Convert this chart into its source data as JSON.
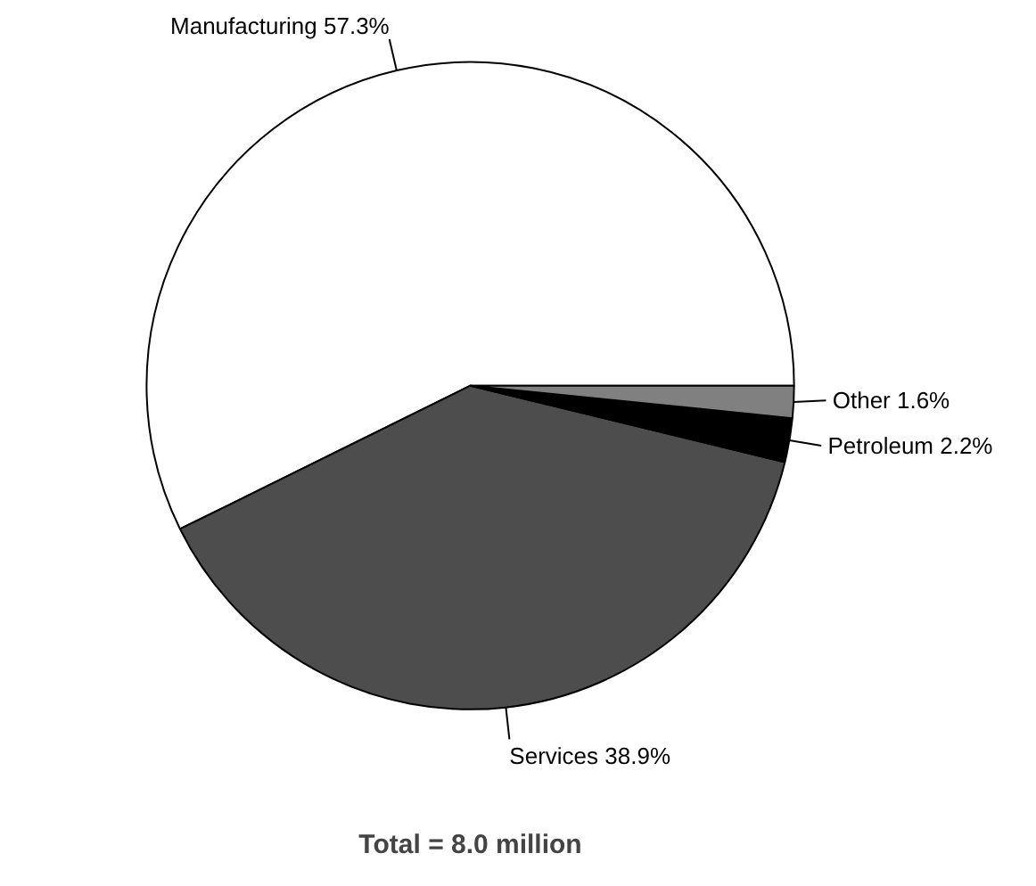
{
  "chart_data": {
    "type": "pie",
    "categories": [
      "Manufacturing",
      "Services",
      "Petroleum",
      "Other"
    ],
    "values": [
      57.3,
      38.9,
      2.2,
      1.6
    ],
    "value_labels": [
      "57.3%",
      "38.9%",
      "2.2%",
      "1.6%"
    ],
    "colors": [
      "#ffffff",
      "#4d4d4d",
      "#000000",
      "#808080"
    ],
    "annotations": [
      "Total = 8.0 million"
    ]
  }
}
